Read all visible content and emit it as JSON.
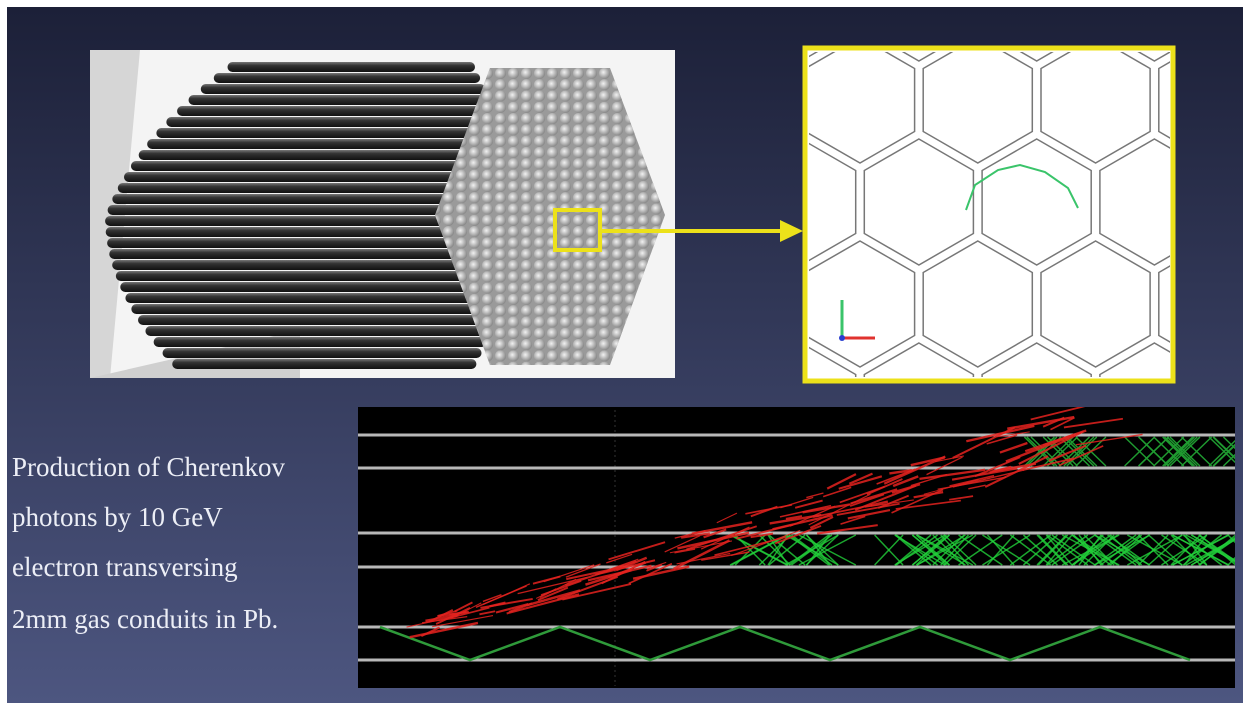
{
  "caption": {
    "lines": [
      "Production of Cherenkov",
      "photons by 10 GeV",
      "electron transversing",
      "2mm gas conduits in Pb."
    ]
  }
}
